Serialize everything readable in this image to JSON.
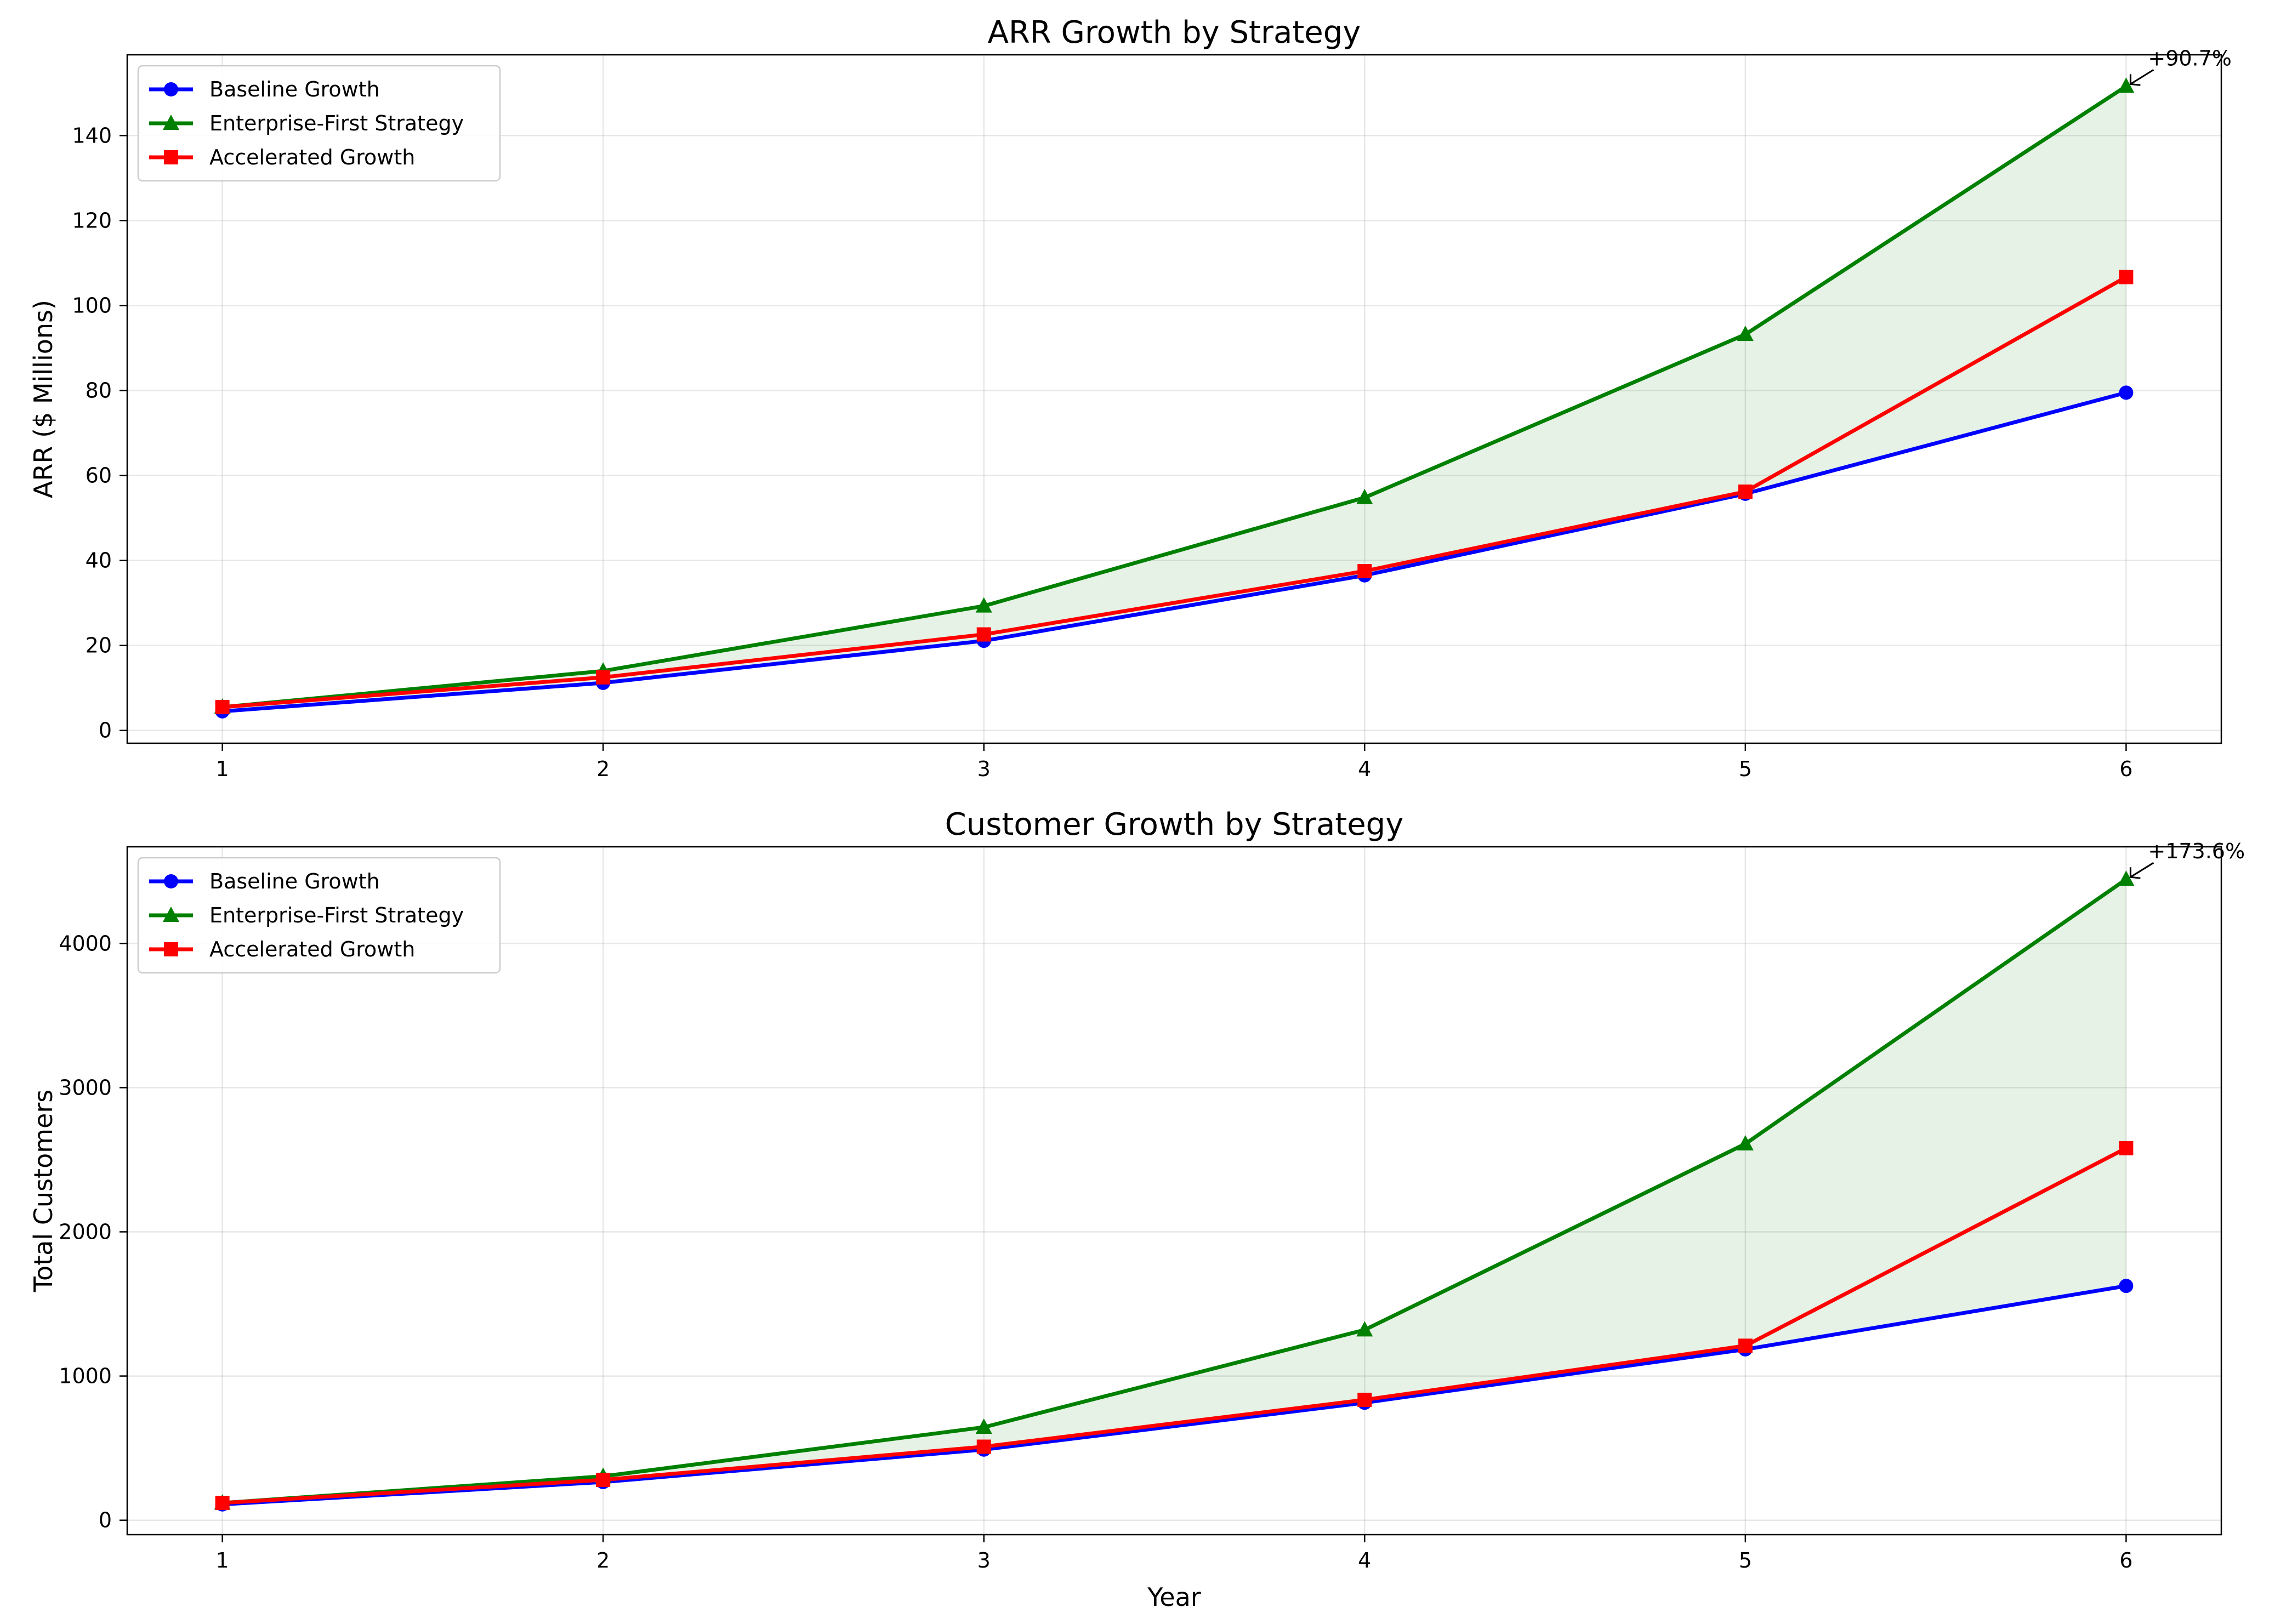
{
  "figure": {
    "background": "#ffffff"
  },
  "chart_data": [
    {
      "type": "line",
      "title": "ARR Growth by Strategy",
      "xlabel": "",
      "ylabel": "ARR ($ Millions)",
      "x": [
        1,
        2,
        3,
        4,
        5,
        6
      ],
      "xlim": [
        0.75,
        6.25
      ],
      "ylim": [
        -3,
        159
      ],
      "yticks": [
        0,
        20,
        40,
        60,
        80,
        100,
        120,
        140
      ],
      "grid": true,
      "legend": "upper left",
      "fill_between": {
        "lower": "Baseline Growth",
        "upper": "Enterprise-First Strategy",
        "color": "#008000"
      },
      "series": [
        {
          "name": "Baseline Growth",
          "color": "#0000ff",
          "marker": "circle",
          "values": [
            4.5,
            11.2,
            21.1,
            36.5,
            55.7,
            79.5
          ]
        },
        {
          "name": "Enterprise-First Strategy",
          "color": "#008000",
          "marker": "triangle",
          "values": [
            5.5,
            14.0,
            29.3,
            54.8,
            93.2,
            151.6
          ]
        },
        {
          "name": "Accelerated Growth",
          "color": "#ff0000",
          "marker": "square",
          "values": [
            5.5,
            12.5,
            22.6,
            37.5,
            56.2,
            106.7
          ]
        }
      ],
      "annotation": {
        "text": "+90.7%",
        "x": 6,
        "y": 151.6
      }
    },
    {
      "type": "line",
      "title": "Customer Growth by Strategy",
      "xlabel": "Year",
      "ylabel": "Total Customers",
      "x": [
        1,
        2,
        3,
        4,
        5,
        6
      ],
      "xlim": [
        0.75,
        6.25
      ],
      "ylim": [
        -100,
        4670
      ],
      "yticks": [
        0,
        1000,
        2000,
        3000,
        4000
      ],
      "grid": true,
      "legend": "upper left",
      "fill_between": {
        "lower": "Baseline Growth",
        "upper": "Enterprise-First Strategy",
        "color": "#008000"
      },
      "series": [
        {
          "name": "Baseline Growth",
          "color": "#0000ff",
          "marker": "circle",
          "values": [
            110,
            265,
            490,
            815,
            1185,
            1625
          ]
        },
        {
          "name": "Enterprise-First Strategy",
          "color": "#008000",
          "marker": "triangle",
          "values": [
            120,
            305,
            645,
            1320,
            2610,
            4445
          ]
        },
        {
          "name": "Accelerated Growth",
          "color": "#ff0000",
          "marker": "square",
          "values": [
            120,
            280,
            510,
            835,
            1210,
            2580
          ]
        }
      ],
      "annotation": {
        "text": "+173.6%",
        "x": 6,
        "y": 4445
      }
    }
  ]
}
